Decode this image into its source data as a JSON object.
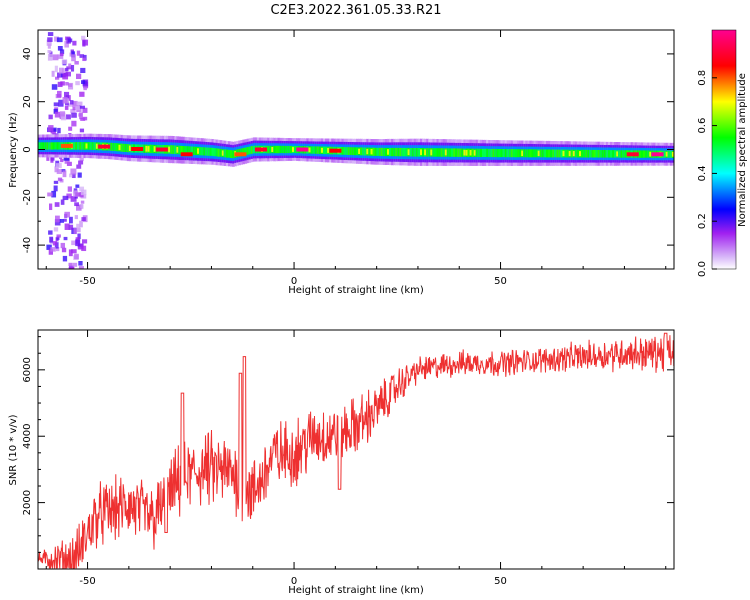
{
  "figure": {
    "title": "C2E3.2022.361.05.33.R21"
  },
  "chart_data": [
    {
      "type": "heatmap",
      "xlabel": "Height of straight line (km)",
      "ylabel": "Frequency (Hz)",
      "xlim": [
        -62,
        92
      ],
      "ylim": [
        -50,
        50
      ],
      "xticks": [
        -50,
        0,
        50
      ],
      "yticks": [
        -40,
        -20,
        0,
        20,
        40
      ],
      "colorbar": {
        "label": "Normalized spectral amplitude",
        "range": [
          0,
          1
        ],
        "ticks": [
          "0.0",
          "0.2",
          "0.4",
          "0.6",
          "0.8"
        ],
        "tick_values": [
          0.0,
          0.2,
          0.4,
          0.6,
          0.8
        ],
        "colormap": [
          "#ffffff",
          "#a020f0",
          "#0000ff",
          "#00ffff",
          "#00ff00",
          "#ffff00",
          "#ff0000",
          "#ff0090"
        ]
      },
      "band": {
        "center_hz": [
          [
            -62,
            1.5
          ],
          [
            -50,
            1.5
          ],
          [
            -45,
            1.2
          ],
          [
            -40,
            0.5
          ],
          [
            -30,
            0
          ],
          [
            -20,
            -1
          ],
          [
            -15,
            -2
          ],
          [
            -10,
            0
          ],
          [
            0,
            0
          ],
          [
            10,
            -0.5
          ],
          [
            20,
            -1
          ],
          [
            50,
            -1.5
          ],
          [
            92,
            -2
          ]
        ],
        "half_width_hz": [
          [
            -62,
            2.5
          ],
          [
            -30,
            3
          ],
          [
            0,
            2.5
          ],
          [
            30,
            3
          ],
          [
            92,
            2.5
          ]
        ],
        "background_noise_x_range": [
          -60,
          -51
        ],
        "hotspots": [
          {
            "x": -55,
            "y": 1.5,
            "amp": 0.8
          },
          {
            "x": -46,
            "y": 1.2,
            "amp": 0.9
          },
          {
            "x": -38,
            "y": 0.2,
            "amp": 0.85
          },
          {
            "x": -32,
            "y": 0,
            "amp": 0.9
          },
          {
            "x": -26,
            "y": -2,
            "amp": 0.85
          },
          {
            "x": -13,
            "y": -2,
            "amp": 0.8
          },
          {
            "x": -8,
            "y": 0,
            "amp": 0.9
          },
          {
            "x": 2,
            "y": 0,
            "amp": 1.0
          },
          {
            "x": 10,
            "y": -0.5,
            "amp": 0.85
          },
          {
            "x": 82,
            "y": -2,
            "amp": 0.9
          },
          {
            "x": 88,
            "y": -2,
            "amp": 1.0
          }
        ]
      }
    },
    {
      "type": "line",
      "xlabel": "Height of straight line (km)",
      "ylabel": "SNR (10 * v/v)",
      "xlim": [
        -62,
        92
      ],
      "ylim": [
        0,
        7200
      ],
      "xticks": [
        -50,
        0,
        50
      ],
      "yticks": [
        2000,
        4000,
        6000
      ],
      "color": "#ee3030",
      "envelope": [
        [
          -62,
          300
        ],
        [
          -53,
          250
        ],
        [
          -48,
          1600
        ],
        [
          -40,
          1900
        ],
        [
          -34,
          1500
        ],
        [
          -28,
          2600
        ],
        [
          -22,
          3000
        ],
        [
          -15,
          2900
        ],
        [
          -10,
          2200
        ],
        [
          -5,
          3400
        ],
        [
          0,
          3500
        ],
        [
          5,
          4000
        ],
        [
          10,
          4000
        ],
        [
          15,
          4300
        ],
        [
          20,
          4800
        ],
        [
          25,
          5500
        ],
        [
          30,
          6000
        ],
        [
          40,
          6200
        ],
        [
          50,
          6200
        ],
        [
          60,
          6300
        ],
        [
          70,
          6400
        ],
        [
          80,
          6500
        ],
        [
          92,
          6500
        ]
      ],
      "spikes": [
        {
          "x": -31,
          "y": 1100
        },
        {
          "x": -27,
          "y": 5300
        },
        {
          "x": -13,
          "y": 5900
        },
        {
          "x": -12,
          "y": 6400
        },
        {
          "x": 11,
          "y": 2400
        },
        {
          "x": 90,
          "y": 7100
        }
      ],
      "noise_amplitude": [
        [
          -62,
          150
        ],
        [
          -52,
          700
        ],
        [
          -20,
          900
        ],
        [
          15,
          700
        ],
        [
          30,
          300
        ],
        [
          60,
          300
        ],
        [
          92,
          450
        ]
      ]
    }
  ]
}
